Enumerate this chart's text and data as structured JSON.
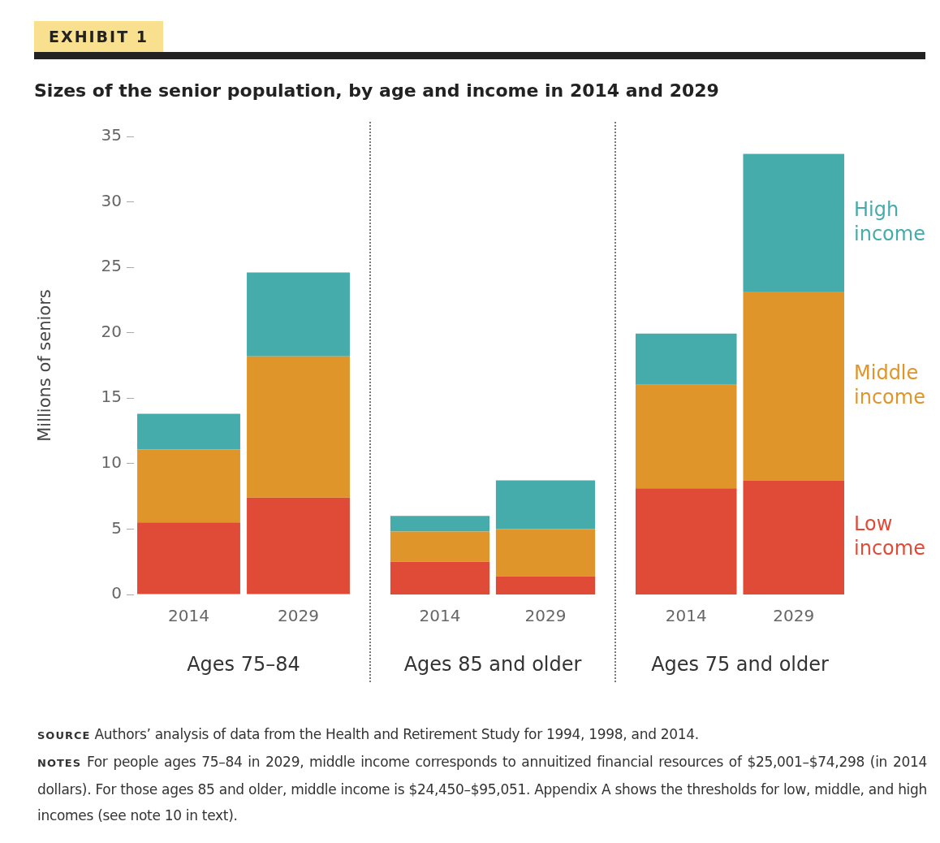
{
  "chart_data": [
    {
      "type": "bar",
      "title": "EXHIBIT 1",
      "subtitle": "Sizes of the senior population, by age and income in 2014 and 2029",
      "ylabel": "Millions of seniors",
      "xlabel": "Ages 75–84",
      "categories": [
        "2014",
        "2029"
      ],
      "stacked": true,
      "ylim": [
        0,
        35
      ],
      "yticks": [
        0,
        5,
        10,
        15,
        20,
        25,
        30,
        35
      ],
      "series": [
        {
          "color": "#e04b37",
          "values": [
            5.5,
            7.4
          ]
        },
        {
          "color": "#e0952a",
          "values": [
            5.6,
            10.8
          ]
        },
        {
          "color": "#45abab",
          "values": [
            2.7,
            6.4
          ]
        }
      ]
    },
    {
      "type": "bar",
      "xlabel": "Ages 85 and older",
      "categories": [
        "2014",
        "2029"
      ],
      "stacked": true,
      "ylim": [
        0,
        35
      ],
      "yticks": [
        0,
        5,
        10,
        15,
        20,
        25,
        30,
        35
      ],
      "tick_labels": "x",
      "series": [
        {
          "color": "#e04b37",
          "values": [
            2.5,
            1.4
          ]
        },
        {
          "color": "#e0952a",
          "values": [
            2.3,
            3.6
          ]
        },
        {
          "color": "#45abab",
          "values": [
            1.2,
            3.7
          ]
        }
      ]
    },
    {
      "type": "bar",
      "xlabel": "Ages 75 and older",
      "categories": [
        "2014",
        "2029"
      ],
      "stacked": true,
      "ylim": [
        0,
        35
      ],
      "yticks": [
        0,
        5,
        10,
        15,
        20,
        25,
        30,
        35
      ],
      "tick_labels": "x",
      "series": [
        {
          "name": "Low income",
          "color": "#e04b37",
          "values": [
            8.1,
            8.7
          ]
        },
        {
          "name": "Middle income",
          "color": "#e0952a",
          "values": [
            7.9,
            14.4
          ]
        },
        {
          "name": "High income",
          "color": "#45abab",
          "values": [
            3.9,
            10.5
          ]
        }
      ],
      "annotations": [
        "SOURCE Authors’ analysis of data from the Health and Retirement Study for 1994, 1998, and 2014.",
        "NOTES For people ages 75–84 in 2029, middle income corresponds to annuitized financial resources of $25,001–$74,298 (in 2014 dollars). For those ages 85 and older, middle income is $24,450–$95,051. Appendix A shows the thresholds for low, middle, and high incomes (see note 10 in text)."
      ]
    }
  ]
}
